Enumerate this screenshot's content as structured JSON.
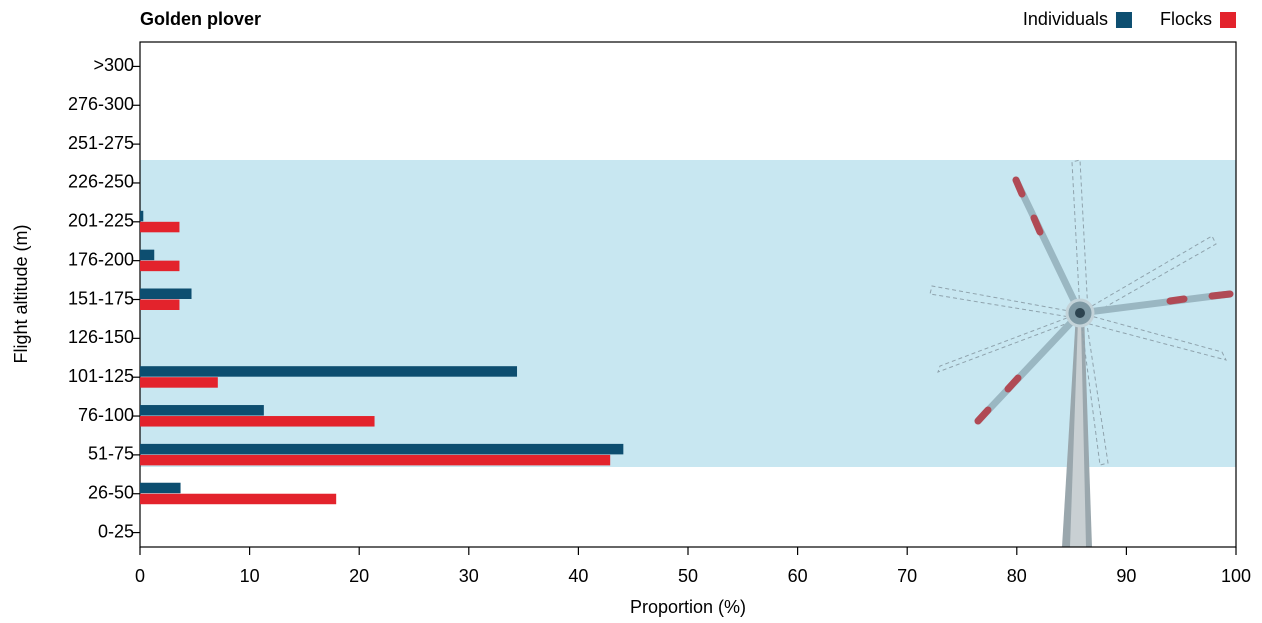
{
  "chart_data": {
    "type": "hbar",
    "title": "Golden plover",
    "x_label": "Proportion (%)",
    "y_label": "Flight altitude (m)",
    "categories": [
      "0-25",
      "26-50",
      "51-75",
      "76-100",
      "101-125",
      "126-150",
      "151-175",
      "176-200",
      "201-225",
      "226-250",
      "251-275",
      "276-300",
      ">300"
    ],
    "series": [
      {
        "name": "Individuals",
        "color": "#0d4e70",
        "values": [
          0,
          3.7,
          44.1,
          11.3,
          34.4,
          0,
          4.7,
          1.3,
          0.3,
          0,
          0,
          0,
          0
        ]
      },
      {
        "name": "Flocks",
        "color": "#e3232c",
        "values": [
          0,
          17.9,
          42.9,
          21.4,
          7.1,
          0,
          3.6,
          3.6,
          3.6,
          0,
          0,
          0,
          0
        ]
      }
    ],
    "xlim": [
      0,
      100
    ],
    "xticks": [
      0,
      10,
      20,
      30,
      40,
      50,
      60,
      70,
      80,
      90,
      100
    ]
  }
}
